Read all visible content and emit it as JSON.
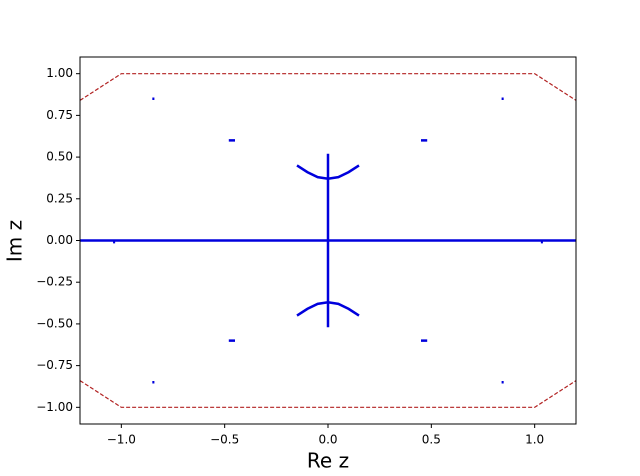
{
  "chart_data": {
    "type": "line",
    "xlabel": "Re z",
    "ylabel": "Im z",
    "xlim": [
      -1.2,
      1.2
    ],
    "ylim": [
      -1.1,
      1.1
    ],
    "xticks": [
      {
        "value": -1.0,
        "label": "−1.0"
      },
      {
        "value": -0.5,
        "label": "−0.5"
      },
      {
        "value": 0,
        "label": "0.0"
      },
      {
        "value": 0.5,
        "label": "0.5"
      },
      {
        "value": 1.0,
        "label": "1.0"
      }
    ],
    "yticks": [
      {
        "value": -1.0,
        "label": "−1.00"
      },
      {
        "value": -0.75,
        "label": "−0.75"
      },
      {
        "value": -0.5,
        "label": "−0.50"
      },
      {
        "value": -0.25,
        "label": "−0.25"
      },
      {
        "value": 0,
        "label": "0.00"
      },
      {
        "value": 0.25,
        "label": "0.25"
      },
      {
        "value": 0.5,
        "label": "0.50"
      },
      {
        "value": 0.75,
        "label": "0.75"
      },
      {
        "value": 1.0,
        "label": "1.00"
      }
    ],
    "series": [
      {
        "color": "#b22222",
        "dashed": true,
        "x": [
          -1.2,
          -1.0,
          1.0,
          1.2,
          null,
          -1.2,
          -1.0,
          1.0,
          1.2
        ],
        "y": [
          0.84,
          1.0,
          1.0,
          0.84,
          null,
          -0.84,
          -1.0,
          -1.0,
          -0.84
        ]
      },
      {
        "color": "#0000dd",
        "dashed": false,
        "x": [
          -1.2,
          1.2,
          null,
          0,
          0,
          null,
          -0.15,
          -0.1,
          -0.05,
          0,
          0.05,
          0.1,
          0.15,
          null,
          -0.15,
          -0.1,
          -0.05,
          0,
          0.05,
          0.1,
          0.15,
          null,
          -0.48,
          -0.45,
          null,
          0.45,
          0.48,
          null,
          -0.48,
          -0.45,
          null,
          0.45,
          0.48,
          null,
          -0.85,
          -0.84,
          null,
          0.84,
          0.85,
          null,
          -0.85,
          -0.84,
          null,
          0.84,
          0.85,
          null,
          -1.04,
          -1.03,
          null,
          -0.58,
          -0.56,
          null,
          0.56,
          0.58,
          null,
          1.03,
          1.04
        ],
        "y": [
          0,
          0,
          null,
          0.52,
          -0.52,
          null,
          0.45,
          0.41,
          0.38,
          0.37,
          0.38,
          0.41,
          0.45,
          null,
          -0.45,
          -0.41,
          -0.38,
          -0.37,
          -0.38,
          -0.41,
          -0.45,
          null,
          0.6,
          0.6,
          null,
          0.6,
          0.6,
          null,
          -0.6,
          -0.6,
          null,
          -0.6,
          -0.6,
          null,
          0.85,
          0.85,
          null,
          0.85,
          0.85,
          null,
          -0.85,
          -0.85,
          null,
          -0.85,
          -0.85,
          null,
          -0.01,
          -0.01,
          null,
          0,
          0,
          null,
          0,
          0,
          null,
          -0.01,
          -0.01
        ]
      }
    ]
  }
}
